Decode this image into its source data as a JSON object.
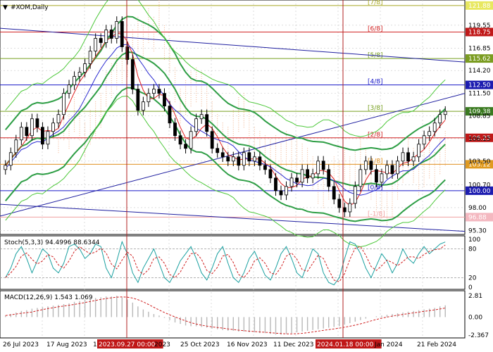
{
  "header": {
    "symbol_label": "#XOM,Daily"
  },
  "colors": {
    "grid": "#c8c8c8",
    "bollinger": "#2e9e45",
    "envelope": "#4dc83a",
    "regression": "#1f1fa0",
    "fast_ma": "#e02020",
    "slow_ma": "#2a2ad0",
    "cloud": "#f0a070",
    "stoch_main": "#1aa0a0",
    "stoch_signal": "#d02020",
    "macd_hist": "#b8b8b8",
    "macd_signal": "#d02020"
  },
  "murrey_levels": [
    {
      "label": "[7/8]",
      "price": 121.88,
      "tag": "121.88",
      "color": "#a8a820",
      "tag_bg": "#e8e860",
      "tag_fg": "#ffffff"
    },
    {
      "label": "[6/8]",
      "price": 118.75,
      "tag": "118.75",
      "color": "#d02020",
      "tag_bg": "#c01818",
      "tag_fg": "#ffffff"
    },
    {
      "label": "[5/8]",
      "price": 115.62,
      "tag": "115.62",
      "color": "#78a020",
      "tag_bg": "#7a9c20",
      "tag_fg": "#ffffff"
    },
    {
      "label": "[4/8]",
      "price": 112.5,
      "tag": "112.50",
      "color": "#1818c8",
      "tag_bg": "#1c1cb0",
      "tag_fg": "#ffffff"
    },
    {
      "label": "[3/8]",
      "price": 109.38,
      "tag": "109.38",
      "color": "#78a020",
      "tag_bg": "#3a7a20",
      "tag_fg": "#ffffff"
    },
    {
      "label": "[2/8]",
      "price": 106.25,
      "tag": "106.25",
      "color": "#d02020",
      "tag_bg": "#c01818",
      "tag_fg": "#ffffff"
    },
    {
      "label": "[1/8]",
      "price": 103.12,
      "tag": "103.12",
      "color": "#e09020",
      "tag_bg": "#e09a20",
      "tag_fg": "#ffffff"
    },
    {
      "label": "[0/8]",
      "price": 100.0,
      "tag": "100.00",
      "color": "#1818c8",
      "tag_bg": "#1c1cb0",
      "tag_fg": "#ffffff"
    },
    {
      "label": "[-1/8]",
      "price": 96.88,
      "tag": "96.88",
      "color": "#f0a0a0",
      "tag_bg": "#f4b8c0",
      "tag_fg": "#ffffff"
    }
  ],
  "current_price_tag": "109.38",
  "price_ticks": [
    "119.55",
    "116.85",
    "114.20",
    "111.50",
    "108.85",
    "106.15",
    "103.50",
    "100.70",
    "98.00",
    "95.30"
  ],
  "price_range": [
    95.0,
    122.2
  ],
  "x_labels": [
    "26 Jul 2023",
    "17 Aug 2023",
    "11 Sep 2023",
    "2023.09.27 00:00",
    "2023",
    "25 Oct 2023",
    "16 Nov 2023",
    "11 Dec 2023",
    "2024.01.18 00:00",
    "Jan 2024",
    "21 Feb 2024"
  ],
  "highlight_x_labels": [
    "2023.09.27 00:00",
    "2024.01.18 00:00"
  ],
  "stoch": {
    "label": "Stoch(5,3,3) 94.4996 88.6344",
    "ticks": [
      "100",
      "80",
      "20",
      "0"
    ],
    "levels": [
      80,
      20
    ]
  },
  "macd": {
    "label": "MACD(12,26,9) 1.543 1.069",
    "ticks": [
      "2.81",
      "0.00",
      "-2.367"
    ]
  },
  "chart_data": {
    "type": "candlestick",
    "title": "#XOM,Daily",
    "ylim": [
      95.0,
      122.2
    ],
    "grid": true,
    "close_series": {
      "name": "",
      "approx_values": [
        103.0,
        104.5,
        106.0,
        107.5,
        106.5,
        108.5,
        107.5,
        105.5,
        107.0,
        108.0,
        109.0,
        111.5,
        112.5,
        113.5,
        114.0,
        115.0,
        116.5,
        118.0,
        117.5,
        119.0,
        118.0,
        120.0,
        117.0,
        115.5,
        112.0,
        109.5,
        110.5,
        111.5,
        112.0,
        111.5,
        110.0,
        108.0,
        106.5,
        105.5,
        105.0,
        107.0,
        108.5,
        109.0,
        107.0,
        105.0,
        104.5,
        104.0,
        103.5,
        104.0,
        103.0,
        104.5,
        103.5,
        104.0,
        103.0,
        102.5,
        101.5,
        100.0,
        99.5,
        100.5,
        101.5,
        101.0,
        102.5,
        101.5,
        102.0,
        103.5,
        102.5,
        100.5,
        99.0,
        98.0,
        97.5,
        98.5,
        100.5,
        102.5,
        103.5,
        102.5,
        101.0,
        102.0,
        103.0,
        102.0,
        103.5,
        104.5,
        103.5,
        104.0,
        105.5,
        106.5,
        107.0,
        108.0,
        109.0,
        109.38
      ]
    },
    "stoch_series": {
      "name": "",
      "approx_values": [
        20,
        40,
        70,
        85,
        60,
        30,
        55,
        80,
        70,
        40,
        30,
        50,
        85,
        90,
        80,
        60,
        70,
        90,
        85,
        40,
        20,
        55,
        95,
        70,
        30,
        10,
        40,
        60,
        80,
        50,
        20,
        10,
        30,
        55,
        70,
        85,
        60,
        30,
        15,
        40,
        70,
        85,
        50,
        20,
        10,
        30,
        60,
        75,
        50,
        25,
        15,
        40,
        70,
        85,
        60,
        30,
        20,
        50,
        80,
        70,
        30,
        10,
        5,
        20,
        60,
        95,
        90,
        70,
        40,
        20,
        45,
        70,
        55,
        30,
        50,
        80,
        60,
        50,
        70,
        85,
        70,
        80,
        90,
        94.5
      ]
    },
    "macd_series": {
      "name": "",
      "approx_values": [
        0.2,
        0.4,
        0.6,
        0.8,
        0.9,
        1.1,
        1.2,
        1.3,
        1.4,
        1.5,
        1.6,
        1.7,
        1.8,
        2.0,
        2.1,
        2.3,
        2.4,
        2.5,
        2.6,
        2.7,
        2.7,
        2.8,
        2.6,
        2.3,
        1.9,
        1.4,
        1.0,
        0.7,
        0.4,
        0.2,
        -0.1,
        -0.4,
        -0.7,
        -0.9,
        -1.1,
        -1.2,
        -1.2,
        -1.3,
        -1.4,
        -1.5,
        -1.6,
        -1.7,
        -1.8,
        -1.8,
        -1.9,
        -1.9,
        -2.0,
        -2.0,
        -2.1,
        -2.1,
        -2.2,
        -2.3,
        -2.3,
        -2.2,
        -2.1,
        -2.0,
        -1.9,
        -1.8,
        -1.7,
        -1.6,
        -1.5,
        -1.4,
        -1.3,
        -1.2,
        -1.0,
        -0.8,
        -0.6,
        -0.4,
        -0.2,
        0.0,
        0.1,
        0.2,
        0.3,
        0.4,
        0.5,
        0.6,
        0.7,
        0.8,
        0.9,
        1.0,
        1.1,
        1.2,
        1.4,
        1.543
      ]
    },
    "macd_signal_value": 1.069
  }
}
